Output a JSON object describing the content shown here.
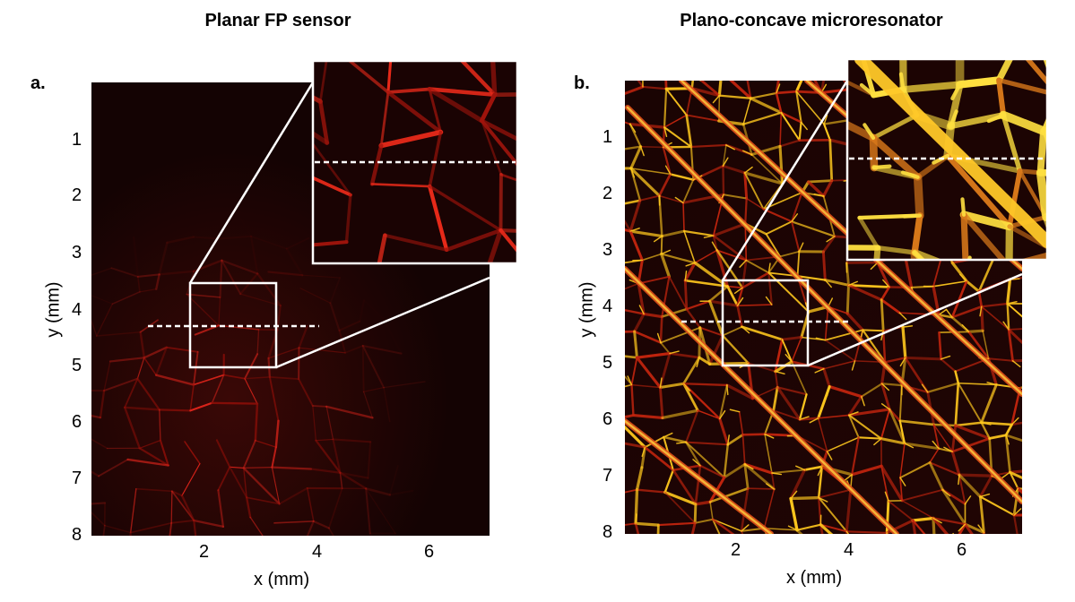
{
  "panels": [
    {
      "id": "a",
      "label": "a.",
      "title": "Planar FP sensor",
      "xlabel": "x (mm)",
      "ylabel": "y (mm)",
      "xticks": [
        "2",
        "4",
        "6"
      ],
      "yticks": [
        "1",
        "2",
        "3",
        "4",
        "5",
        "6",
        "7",
        "8"
      ]
    },
    {
      "id": "b",
      "label": "b.",
      "title": "Plano-concave microresonator",
      "xlabel": "x (mm)",
      "ylabel": "y (mm)",
      "xticks": [
        "2",
        "4",
        "6"
      ],
      "yticks": [
        "1",
        "2",
        "3",
        "4",
        "5",
        "6",
        "7",
        "8"
      ]
    }
  ],
  "colors": {
    "image_background": "#140303",
    "vessel_dim": "#b4140c",
    "vessel_bright": "#ffd21e",
    "annotation": "#ffffff"
  }
}
